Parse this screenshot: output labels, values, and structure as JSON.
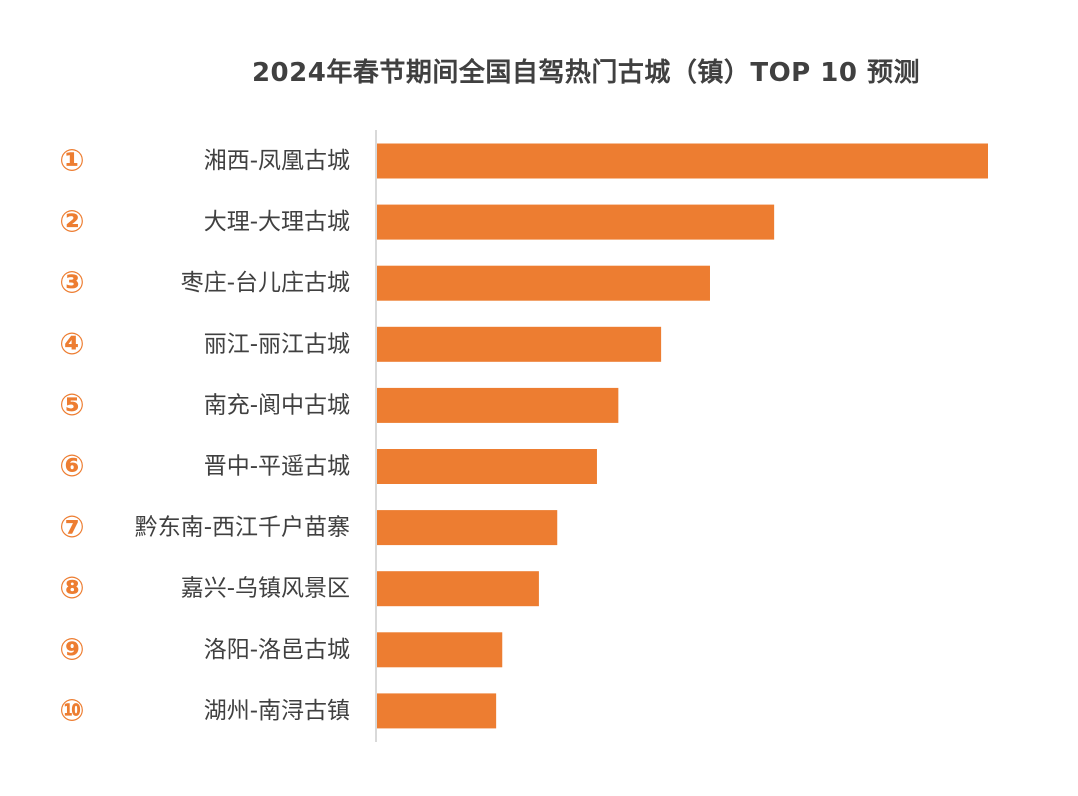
{
  "chart_data": {
    "type": "bar",
    "orientation": "horizontal",
    "title": "2024年春节期间全国自驾热门古城（镇）TOP 10 预测",
    "ranks": [
      "①",
      "②",
      "③",
      "④",
      "⑤",
      "⑥",
      "⑦",
      "⑧",
      "⑨",
      "⑩"
    ],
    "categories": [
      "湘西-凤凰古城",
      "大理-大理古城",
      "枣庄-台儿庄古城",
      "丽江-丽江古城",
      "南充-阆中古城",
      "晋中-平遥古城",
      "黔东南-西江千户苗寨",
      "嘉兴-乌镇风景区",
      "洛阳-洛邑古城",
      "湖州-南浔古镇"
    ],
    "values": [
      100,
      65,
      54.5,
      46.5,
      39.5,
      36,
      29.5,
      26.5,
      20.5,
      19.5
    ],
    "xlim": [
      0,
      100
    ],
    "grid": false,
    "legend": "none"
  },
  "colors": {
    "bar": "#ed7d31",
    "rank": "#ed7d31",
    "label": "#404040",
    "axis": "#d9d9d9"
  }
}
